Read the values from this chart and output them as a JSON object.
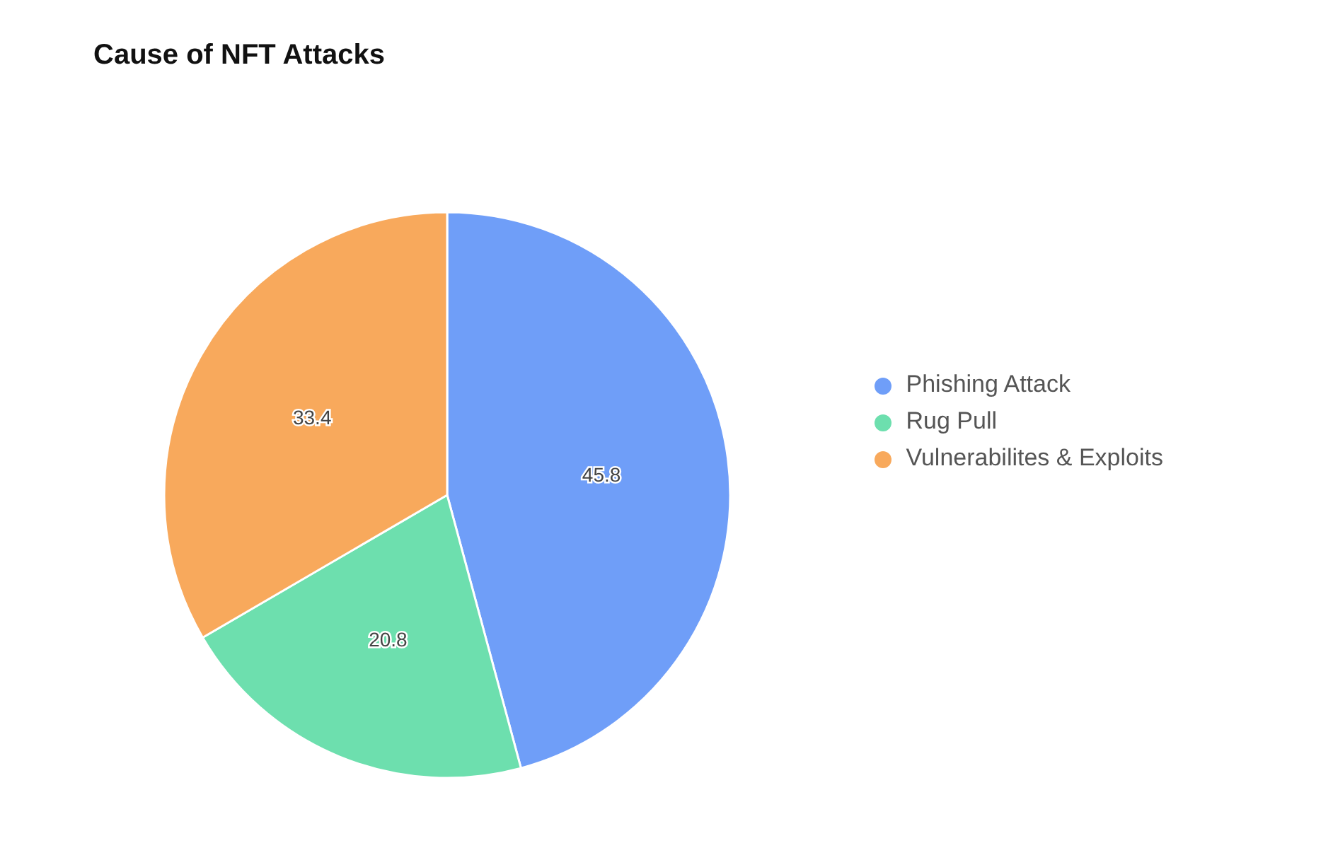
{
  "chart_data": {
    "type": "pie",
    "title": "Cause of NFT Attacks",
    "categories": [
      "Phishing Attack",
      "Rug Pull",
      "Vulnerabilites & Exploits"
    ],
    "values": [
      45.8,
      20.8,
      33.4
    ],
    "colors": [
      "#6f9ef8",
      "#6ddfae",
      "#f8a95c"
    ],
    "data_labels": true,
    "legend": "right"
  }
}
